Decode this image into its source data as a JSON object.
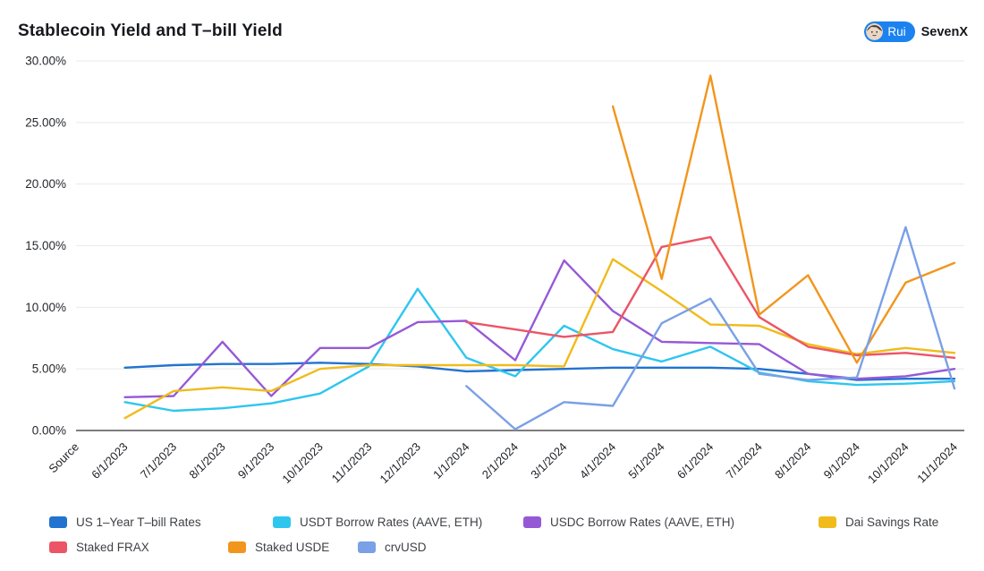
{
  "header": {
    "title": "Stablecoin Yield and T–bill Yield",
    "author": {
      "name": "Rui",
      "org": "SevenX",
      "badge_color": "#1b82f0"
    }
  },
  "chart_data": {
    "type": "line",
    "title": "Stablecoin Yield and T–bill Yield",
    "xlabel": "",
    "ylabel": "",
    "ylim": [
      0,
      30
    ],
    "grid": true,
    "legend_position": "bottom",
    "y_ticks": [
      {
        "value": 30,
        "label": "30.00%"
      },
      {
        "value": 25,
        "label": "25.00%"
      },
      {
        "value": 20,
        "label": "20.00%"
      },
      {
        "value": 15,
        "label": "15.00%"
      },
      {
        "value": 10,
        "label": "10.00%"
      },
      {
        "value": 5,
        "label": "5.00%"
      },
      {
        "value": 0,
        "label": "0.00%"
      }
    ],
    "x_axis": {
      "source_label": "Source",
      "categories": [
        "6/1/2023",
        "7/1/2023",
        "8/1/2023",
        "9/1/2023",
        "10/1/2023",
        "11/1/2023",
        "12/1/2023",
        "1/1/2024",
        "2/1/2024",
        "3/1/2024",
        "4/1/2024",
        "5/1/2024",
        "6/1/2024",
        "7/1/2024",
        "8/1/2024",
        "9/1/2024",
        "10/1/2024",
        "11/1/2024"
      ]
    },
    "series": [
      {
        "name": "US 1–Year T–bill Rates",
        "color": "#2273d0",
        "values": [
          5.1,
          5.3,
          5.4,
          5.4,
          5.5,
          5.4,
          5.2,
          4.8,
          4.9,
          5.0,
          5.1,
          5.1,
          5.1,
          5.0,
          4.6,
          4.1,
          4.2,
          4.2
        ]
      },
      {
        "name": "USDT Borrow Rates (AAVE, ETH)",
        "color": "#2ec6ef",
        "values": [
          2.3,
          1.6,
          1.8,
          2.2,
          3.0,
          5.2,
          11.5,
          5.9,
          4.4,
          8.5,
          6.6,
          5.6,
          6.8,
          4.7,
          4.0,
          3.7,
          3.8,
          4.0
        ]
      },
      {
        "name": "USDC Borrow Rates (AAVE, ETH)",
        "color": "#9659d6",
        "values": [
          2.7,
          2.8,
          7.2,
          2.8,
          6.7,
          6.7,
          8.8,
          8.9,
          5.7,
          13.8,
          9.7,
          7.2,
          7.1,
          7.0,
          4.6,
          4.2,
          4.4,
          5.0
        ]
      },
      {
        "name": "Dai Savings Rate",
        "color": "#f0bb1b",
        "values": [
          1.0,
          3.2,
          3.5,
          3.2,
          5.0,
          5.3,
          5.3,
          5.3,
          5.3,
          5.2,
          13.9,
          11.3,
          8.6,
          8.5,
          7.0,
          6.2,
          6.7,
          6.3
        ]
      },
      {
        "name": "Staked FRAX",
        "color": "#ec5565",
        "values": [
          null,
          null,
          null,
          null,
          null,
          null,
          null,
          8.8,
          8.2,
          7.6,
          8.0,
          14.9,
          15.7,
          9.2,
          6.8,
          6.1,
          6.3,
          5.9
        ]
      },
      {
        "name": "Staked USDE",
        "color": "#f2951c",
        "values": [
          null,
          null,
          null,
          null,
          null,
          null,
          null,
          null,
          null,
          null,
          26.3,
          12.3,
          28.8,
          9.4,
          12.6,
          5.5,
          12.0,
          13.6
        ]
      },
      {
        "name": "crvUSD",
        "color": "#7aa0e6",
        "values": [
          null,
          null,
          null,
          null,
          null,
          null,
          null,
          3.6,
          0.1,
          2.3,
          2.0,
          8.7,
          10.7,
          4.6,
          4.1,
          4.3,
          16.5,
          3.4
        ]
      }
    ]
  }
}
